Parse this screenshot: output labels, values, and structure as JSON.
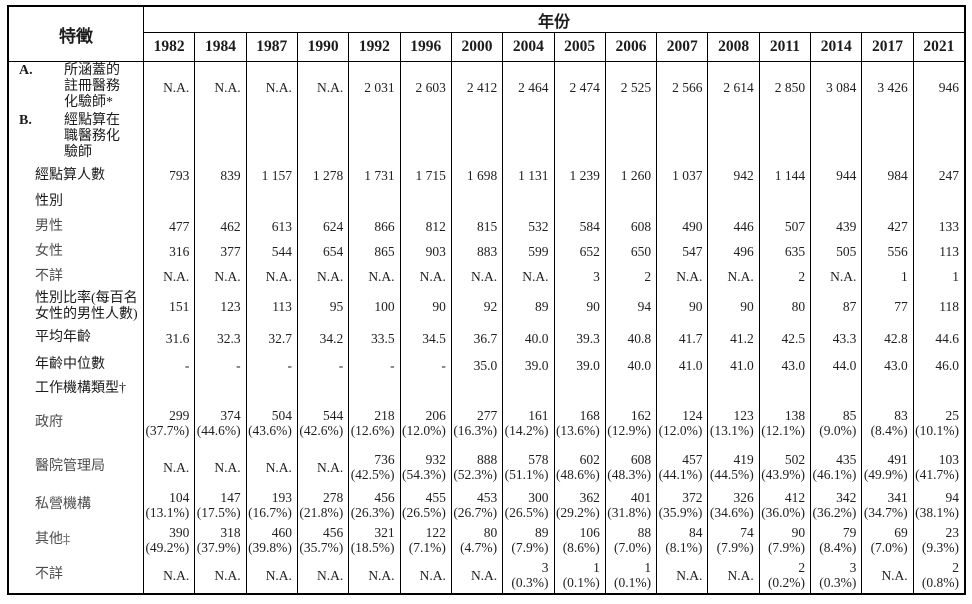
{
  "table": {
    "feature_label": "特徵",
    "year_label": "年份",
    "years": [
      "1982",
      "1984",
      "1987",
      "1990",
      "1992",
      "1996",
      "2000",
      "2004",
      "2005",
      "2006",
      "2007",
      "2008",
      "2011",
      "2014",
      "2017",
      "2021"
    ],
    "rows": [
      {
        "id": "covered-registered",
        "type": "section",
        "level": "primary",
        "marker": "A.",
        "label": "所涵蓋的註冊醫務化驗師*",
        "values": [
          "N.A.",
          "N.A.",
          "N.A.",
          "N.A.",
          "2 031",
          "2 603",
          "2 412",
          "2 464",
          "2 474",
          "2 525",
          "2 566",
          "2 614",
          "2 850",
          "3 084",
          "3 426",
          "946"
        ]
      },
      {
        "id": "enumerated-working",
        "type": "section",
        "level": "primary",
        "marker": "B.",
        "label": "經點算在職醫務化驗師",
        "values": [
          "",
          "",
          "",
          "",
          "",
          "",
          "",
          "",
          "",
          "",
          "",
          "",
          "",
          "",
          "",
          ""
        ]
      },
      {
        "id": "enumerated-count",
        "type": "data",
        "level": "primary",
        "label": "經點算人數",
        "values": [
          "793",
          "839",
          "1 157",
          "1 278",
          "1 731",
          "1 715",
          "1 698",
          "1 131",
          "1 239",
          "1 260",
          "1 037",
          "942",
          "1 144",
          "944",
          "984",
          "247"
        ]
      },
      {
        "id": "sex",
        "type": "subheader",
        "level": "primary",
        "label": "性別",
        "values": [
          "",
          "",
          "",
          "",
          "",
          "",
          "",
          "",
          "",
          "",
          "",
          "",
          "",
          "",
          "",
          ""
        ]
      },
      {
        "id": "male",
        "type": "data",
        "level": "secondary",
        "label": "男性",
        "values": [
          "477",
          "462",
          "613",
          "624",
          "866",
          "812",
          "815",
          "532",
          "584",
          "608",
          "490",
          "446",
          "507",
          "439",
          "427",
          "133"
        ]
      },
      {
        "id": "female",
        "type": "data",
        "level": "secondary",
        "label": "女性",
        "values": [
          "316",
          "377",
          "544",
          "654",
          "865",
          "903",
          "883",
          "599",
          "652",
          "650",
          "547",
          "496",
          "635",
          "505",
          "556",
          "113"
        ]
      },
      {
        "id": "sex-unknown",
        "type": "data",
        "level": "secondary",
        "label": "不詳",
        "values": [
          "N.A.",
          "N.A.",
          "N.A.",
          "N.A.",
          "N.A.",
          "N.A.",
          "N.A.",
          "N.A.",
          "3",
          "2",
          "N.A.",
          "N.A.",
          "2",
          "N.A.",
          "1",
          "1"
        ]
      },
      {
        "id": "sex-ratio",
        "type": "data",
        "level": "primary",
        "label": "性別比率(每百名女性的男性人數)",
        "values": [
          "151",
          "123",
          "113",
          "95",
          "100",
          "90",
          "92",
          "89",
          "90",
          "94",
          "90",
          "90",
          "80",
          "87",
          "77",
          "118"
        ]
      },
      {
        "id": "mean-age",
        "type": "data",
        "level": "primary",
        "label": "平均年齡",
        "values": [
          "31.6",
          "32.3",
          "32.7",
          "34.2",
          "33.5",
          "34.5",
          "36.7",
          "40.0",
          "39.3",
          "40.8",
          "41.7",
          "41.2",
          "42.5",
          "43.3",
          "42.8",
          "44.6"
        ]
      },
      {
        "id": "median-age",
        "type": "data",
        "level": "primary",
        "label": "年齡中位數",
        "values": [
          "-",
          "-",
          "-",
          "-",
          "-",
          "-",
          "35.0",
          "39.0",
          "39.0",
          "40.0",
          "41.0",
          "41.0",
          "43.0",
          "44.0",
          "43.0",
          "46.0"
        ]
      },
      {
        "id": "work-sector-type",
        "type": "subheader",
        "level": "primary",
        "label": "工作機構類型†",
        "values": [
          "",
          "",
          "",
          "",
          "",
          "",
          "",
          "",
          "",
          "",
          "",
          "",
          "",
          "",
          "",
          ""
        ]
      },
      {
        "id": "government",
        "type": "data",
        "level": "secondary",
        "label": "政府",
        "values": [
          "299\n(37.7%)",
          "374\n(44.6%)",
          "504\n(43.6%)",
          "544\n(42.6%)",
          "218\n(12.6%)",
          "206\n(12.0%)",
          "277\n(16.3%)",
          "161\n(14.2%)",
          "168\n(13.6%)",
          "162\n(12.9%)",
          "124\n(12.0%)",
          "123\n(13.1%)",
          "138\n(12.1%)",
          "85\n(9.0%)",
          "83\n(8.4%)",
          "25\n(10.1%)"
        ]
      },
      {
        "id": "hospital-authority",
        "type": "data",
        "level": "secondary",
        "label": "醫院管理局",
        "values": [
          "N.A.",
          "N.A.",
          "N.A.",
          "N.A.",
          "736\n(42.5%)",
          "932\n(54.3%)",
          "888\n(52.3%)",
          "578\n(51.1%)",
          "602\n(48.6%)",
          "608\n(48.3%)",
          "457\n(44.1%)",
          "419\n(44.5%)",
          "502\n(43.9%)",
          "435\n(46.1%)",
          "491\n(49.9%)",
          "103\n(41.7%)"
        ]
      },
      {
        "id": "private-sector",
        "type": "data",
        "level": "secondary",
        "label": "私營機構",
        "values": [
          "104\n(13.1%)",
          "147\n(17.5%)",
          "193\n(16.7%)",
          "278\n(21.8%)",
          "456\n(26.3%)",
          "455\n(26.5%)",
          "453\n(26.7%)",
          "300\n(26.5%)",
          "362\n(29.2%)",
          "401\n(31.8%)",
          "372\n(35.9%)",
          "326\n(34.6%)",
          "412\n(36.0%)",
          "342\n(36.2%)",
          "341\n(34.7%)",
          "94\n(38.1%)"
        ]
      },
      {
        "id": "others",
        "type": "data",
        "level": "secondary",
        "label": "其他‡",
        "values": [
          "390\n(49.2%)",
          "318\n(37.9%)",
          "460\n(39.8%)",
          "456\n(35.7%)",
          "321\n(18.5%)",
          "122\n(7.1%)",
          "80\n(4.7%)",
          "89\n(7.9%)",
          "106\n(8.6%)",
          "88\n(7.0%)",
          "84\n(8.1%)",
          "74\n(7.9%)",
          "90\n(7.9%)",
          "79\n(8.4%)",
          "69\n(7.0%)",
          "23\n(9.3%)"
        ]
      },
      {
        "id": "sector-unknown",
        "type": "data",
        "level": "secondary",
        "label": "不詳",
        "values": [
          "N.A.",
          "N.A.",
          "N.A.",
          "N.A.",
          "N.A.",
          "N.A.",
          "N.A.",
          "3\n(0.3%)",
          "1\n(0.1%)",
          "1\n(0.1%)",
          "N.A.",
          "N.A.",
          "2\n(0.2%)",
          "3\n(0.3%)",
          "N.A.",
          "2\n(0.8%)"
        ]
      }
    ]
  }
}
